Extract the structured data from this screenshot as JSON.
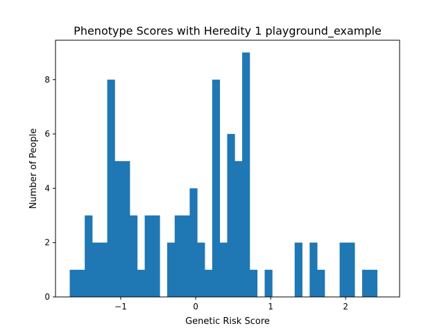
{
  "chart_data": {
    "type": "bar",
    "title": "Phenotype Scores with Heredity 1 playground_example",
    "xlabel": "Genetic Risk Score",
    "ylabel": "Number of People",
    "bar_color": "#1f77b4",
    "xlim": [
      -1.87,
      2.72
    ],
    "ylim": [
      0,
      9.45
    ],
    "x_ticks": [
      -1,
      0,
      1,
      2
    ],
    "x_tick_labels": [
      "−1",
      "0",
      "1",
      "2"
    ],
    "y_ticks": [
      0,
      2,
      4,
      6,
      8
    ],
    "y_tick_labels": [
      "0",
      "2",
      "4",
      "6",
      "8"
    ],
    "grid": false,
    "bins": {
      "start": -1.68,
      "width": 0.1,
      "counts": [
        1,
        1,
        3,
        2,
        2,
        8,
        5,
        5,
        3,
        1,
        3,
        3,
        0,
        2,
        3,
        3,
        4,
        2,
        1,
        8,
        2,
        6,
        5,
        9,
        1,
        0,
        1,
        0,
        0,
        0,
        2,
        0,
        2,
        1,
        0,
        0,
        2,
        2,
        0,
        1,
        1
      ]
    }
  }
}
